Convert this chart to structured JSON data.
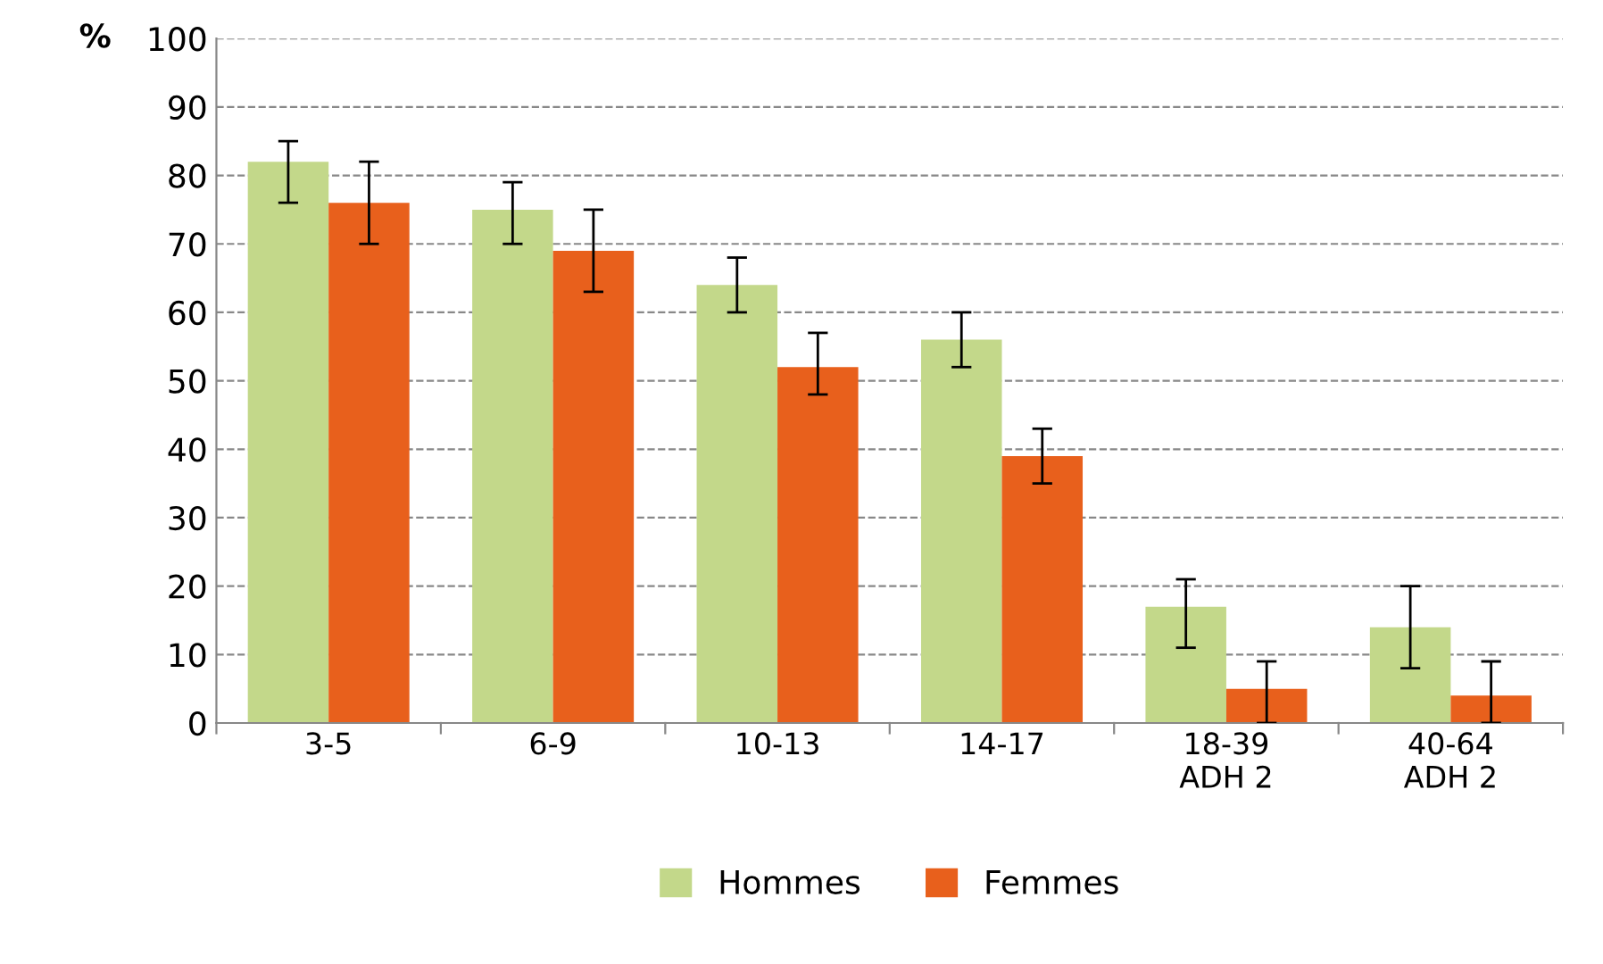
{
  "chart_data": {
    "type": "bar",
    "ylabel": "%",
    "categories": [
      "3-5",
      "6-9",
      "10-13",
      "14-17",
      "18-39\nADH 2",
      "40-64\nADH 2"
    ],
    "series": [
      {
        "name": "Hommes",
        "color": "#c3d88a",
        "values": [
          82,
          75,
          64,
          56,
          17,
          14
        ],
        "errors": [
          [
            76,
            85
          ],
          [
            70,
            79
          ],
          [
            60,
            68
          ],
          [
            52,
            60
          ],
          [
            11,
            21
          ],
          [
            8,
            20
          ]
        ]
      },
      {
        "name": "Femmes",
        "color": "#e8601c",
        "values": [
          76,
          69,
          52,
          39,
          5,
          4
        ],
        "errors": [
          [
            70,
            82
          ],
          [
            63,
            75
          ],
          [
            48,
            57
          ],
          [
            35,
            43
          ],
          [
            0,
            9
          ],
          [
            0,
            9
          ]
        ]
      }
    ],
    "ylim": [
      0,
      100
    ],
    "yticks": [
      0,
      10,
      20,
      30,
      40,
      50,
      60,
      70,
      80,
      90,
      100
    ],
    "grid": "y",
    "legend": "bottom"
  }
}
